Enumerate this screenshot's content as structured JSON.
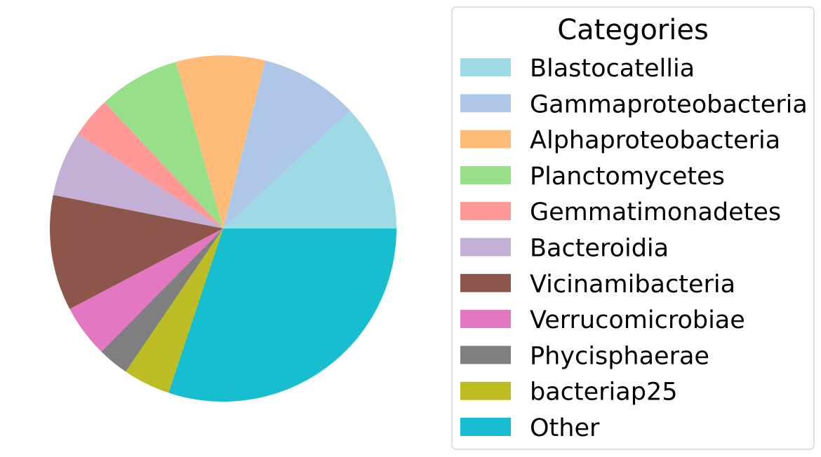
{
  "chart_data": {
    "type": "pie",
    "legend": {
      "title": "Categories",
      "placement": "right"
    },
    "start_angle_deg": 0,
    "direction": "counterclockwise",
    "slices": [
      {
        "label": "Blastocatellia",
        "value": 11.9,
        "color": "#9edae5"
      },
      {
        "label": "Gammaproteobacteria",
        "value": 9.2,
        "color": "#aec7e8"
      },
      {
        "label": "Alphaproteobacteria",
        "value": 8.3,
        "color": "#ffbb78"
      },
      {
        "label": "Planctomycetes",
        "value": 7.6,
        "color": "#98df8a"
      },
      {
        "label": "Gemmatimonadetes",
        "value": 3.8,
        "color": "#ff9896"
      },
      {
        "label": "Bacteroidia",
        "value": 6.1,
        "color": "#c5b0d5"
      },
      {
        "label": "Vicinamibacteria",
        "value": 10.8,
        "color": "#8c564b"
      },
      {
        "label": "Verrucomicrobiae",
        "value": 4.9,
        "color": "#e377c2"
      },
      {
        "label": "Phycisphaerae",
        "value": 2.9,
        "color": "#7f7f7f"
      },
      {
        "label": "bacteriap25",
        "value": 4.4,
        "color": "#bcbd22"
      },
      {
        "label": "Other",
        "value": 30.1,
        "color": "#17becf"
      }
    ]
  }
}
